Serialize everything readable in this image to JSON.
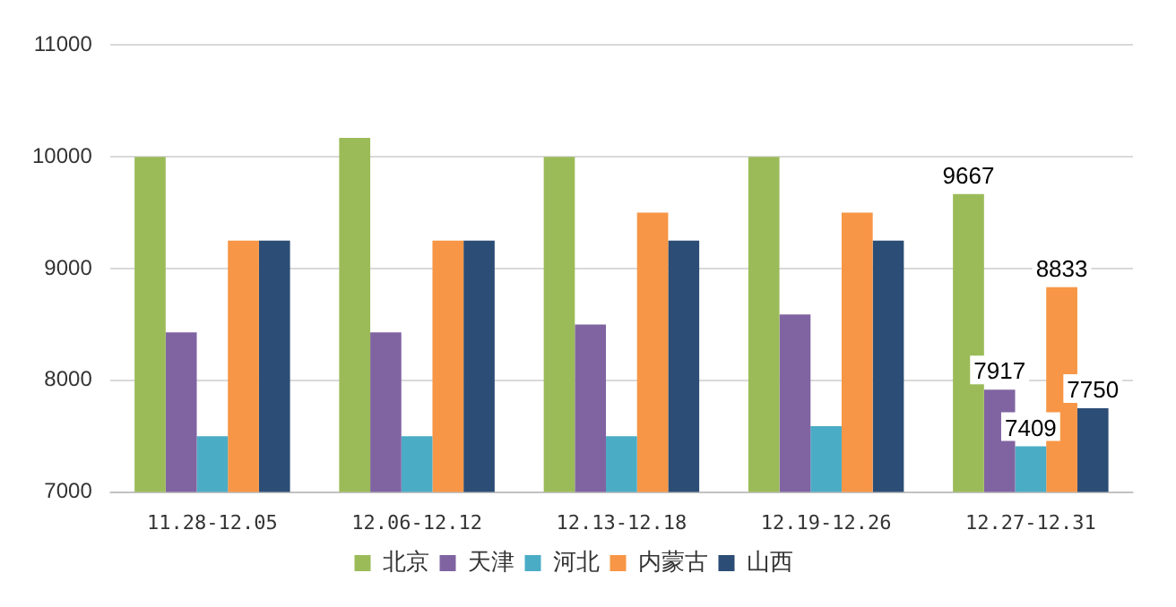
{
  "chart_data": {
    "type": "bar",
    "categories": [
      "11.28-12.05",
      "12.06-12.12",
      "12.13-12.18",
      "12.19-12.26",
      "12.27-12.31"
    ],
    "series": [
      {
        "name": "北京",
        "color": "#9bbb59",
        "values": [
          10000,
          10170,
          10000,
          10000,
          9667
        ],
        "value_labels": [
          null,
          null,
          null,
          null,
          "9667"
        ]
      },
      {
        "name": "天津",
        "color": "#8064a2",
        "values": [
          8430,
          8430,
          8500,
          8590,
          7917
        ],
        "value_labels": [
          null,
          null,
          null,
          null,
          "7917"
        ]
      },
      {
        "name": "河北",
        "color": "#4bacc6",
        "values": [
          7500,
          7500,
          7500,
          7590,
          7409
        ],
        "value_labels": [
          null,
          null,
          null,
          null,
          "7409"
        ]
      },
      {
        "name": "内蒙古",
        "color": "#f79646",
        "values": [
          9250,
          9250,
          9500,
          9500,
          8833
        ],
        "value_labels": [
          null,
          null,
          null,
          null,
          "8833"
        ]
      },
      {
        "name": "山西",
        "color": "#2c4d75",
        "values": [
          9250,
          9250,
          9250,
          9250,
          7750
        ],
        "value_labels": [
          null,
          null,
          null,
          null,
          "7750"
        ]
      }
    ],
    "ylim": [
      7000,
      11000
    ],
    "yticks": [
      7000,
      8000,
      9000,
      10000,
      11000
    ],
    "grid": "y",
    "legend": "bottom"
  }
}
